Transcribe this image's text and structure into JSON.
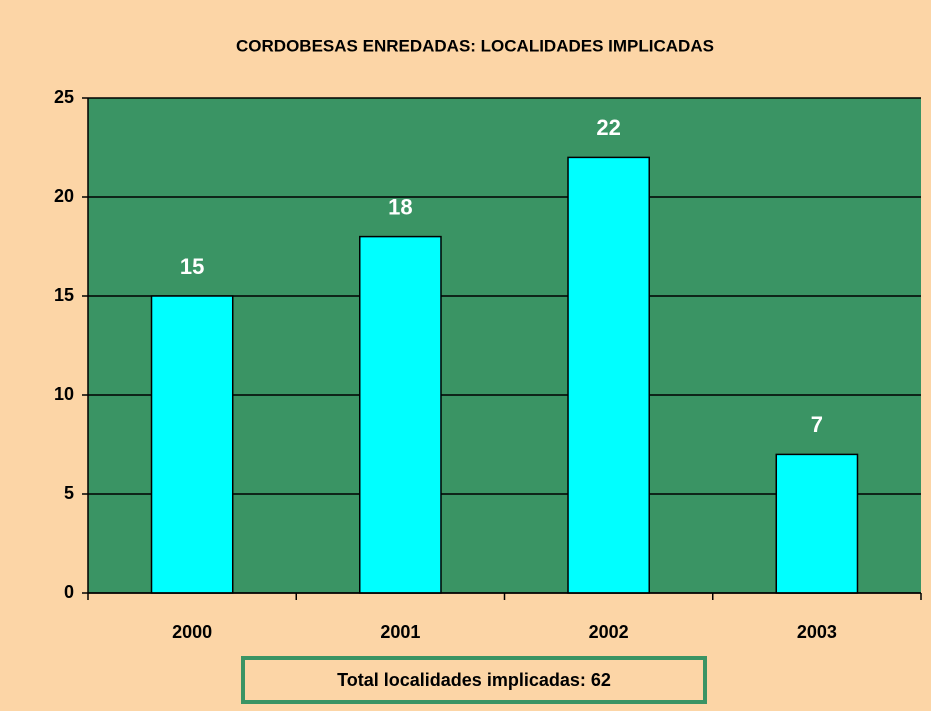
{
  "chart_data": {
    "type": "bar",
    "title": "CORDOBESAS ENREDADAS: LOCALIDADES IMPLICADAS",
    "categories": [
      "2000",
      "2001",
      "2002",
      "2003"
    ],
    "values": [
      15,
      18,
      22,
      7
    ],
    "color": "#00ffff",
    "plot_background": "#3a9464",
    "ylim": [
      0,
      25
    ],
    "yticks": [
      0,
      5,
      10,
      15,
      20,
      25
    ],
    "grid": true,
    "annotation": "Total localidades implicadas: 62"
  }
}
